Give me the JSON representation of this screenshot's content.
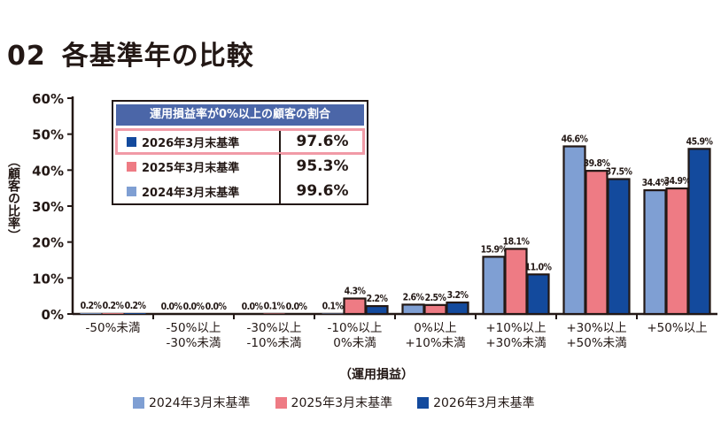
{
  "title": {
    "number": "02",
    "text": "各基準年の比較"
  },
  "colors": {
    "2024": "#7f9fd3",
    "2025": "#ee7b84",
    "2026": "#134a9d",
    "frame": "#231815",
    "box_header": "#4b66a8",
    "highlight": "#f19aa6"
  },
  "summary_box": {
    "header": "運用損益率が0%以上の顧客の割合",
    "rows": [
      {
        "label": "2026年3月末基準",
        "value": "97.6%",
        "series": "2026",
        "highlight": true
      },
      {
        "label": "2025年3月末基準",
        "value": "95.3%",
        "series": "2025",
        "highlight": false
      },
      {
        "label": "2024年3月末基準",
        "value": "99.6%",
        "series": "2024",
        "highlight": false
      }
    ]
  },
  "legend": [
    {
      "label": "2024年3月末基準",
      "series": "2024"
    },
    {
      "label": "2025年3月末基準",
      "series": "2025"
    },
    {
      "label": "2026年3月末基準",
      "series": "2026"
    }
  ],
  "chart_data": {
    "type": "bar",
    "ylabel": "（顧客の比率）",
    "xlabel": "（運用損益）",
    "ylim": [
      0,
      60
    ],
    "yticks": [
      "0%",
      "10%",
      "20%",
      "30%",
      "40%",
      "50%",
      "60%"
    ],
    "categories": [
      [
        "-50%未満"
      ],
      [
        "-50%以上",
        "-30%未満"
      ],
      [
        "-30%以上",
        "-10%未満"
      ],
      [
        "-10%以上",
        "0%未満"
      ],
      [
        "0%以上",
        "+10%未満"
      ],
      [
        "+10%以上",
        "+30%未満"
      ],
      [
        "+30%以上",
        "+50%未満"
      ],
      [
        "+50%以上"
      ]
    ],
    "series": [
      {
        "name": "2024年3月末基準",
        "key": "2024",
        "values": [
          0.2,
          0.0,
          0.0,
          0.1,
          2.6,
          15.9,
          46.6,
          34.4
        ],
        "labels": [
          "0.2%",
          "0.0%",
          "0.0%",
          "0.1%",
          "2.6%",
          "15.9%",
          "46.6%",
          "34.4%"
        ]
      },
      {
        "name": "2025年3月末基準",
        "key": "2025",
        "values": [
          0.2,
          0.0,
          0.1,
          4.3,
          2.5,
          18.1,
          39.8,
          34.9
        ],
        "labels": [
          "0.2%",
          "0.0%",
          "0.1%",
          "4.3%",
          "2.5%",
          "18.1%",
          "39.8%",
          "34.9%"
        ]
      },
      {
        "name": "2026年3月末基準",
        "key": "2026",
        "values": [
          0.2,
          0.0,
          0.0,
          2.2,
          3.2,
          11.0,
          37.5,
          45.9
        ],
        "labels": [
          "0.2%",
          "0.0%",
          "0.0%",
          "2.2%",
          "3.2%",
          "11.0%",
          "37.5%",
          "45.9%"
        ]
      }
    ]
  }
}
